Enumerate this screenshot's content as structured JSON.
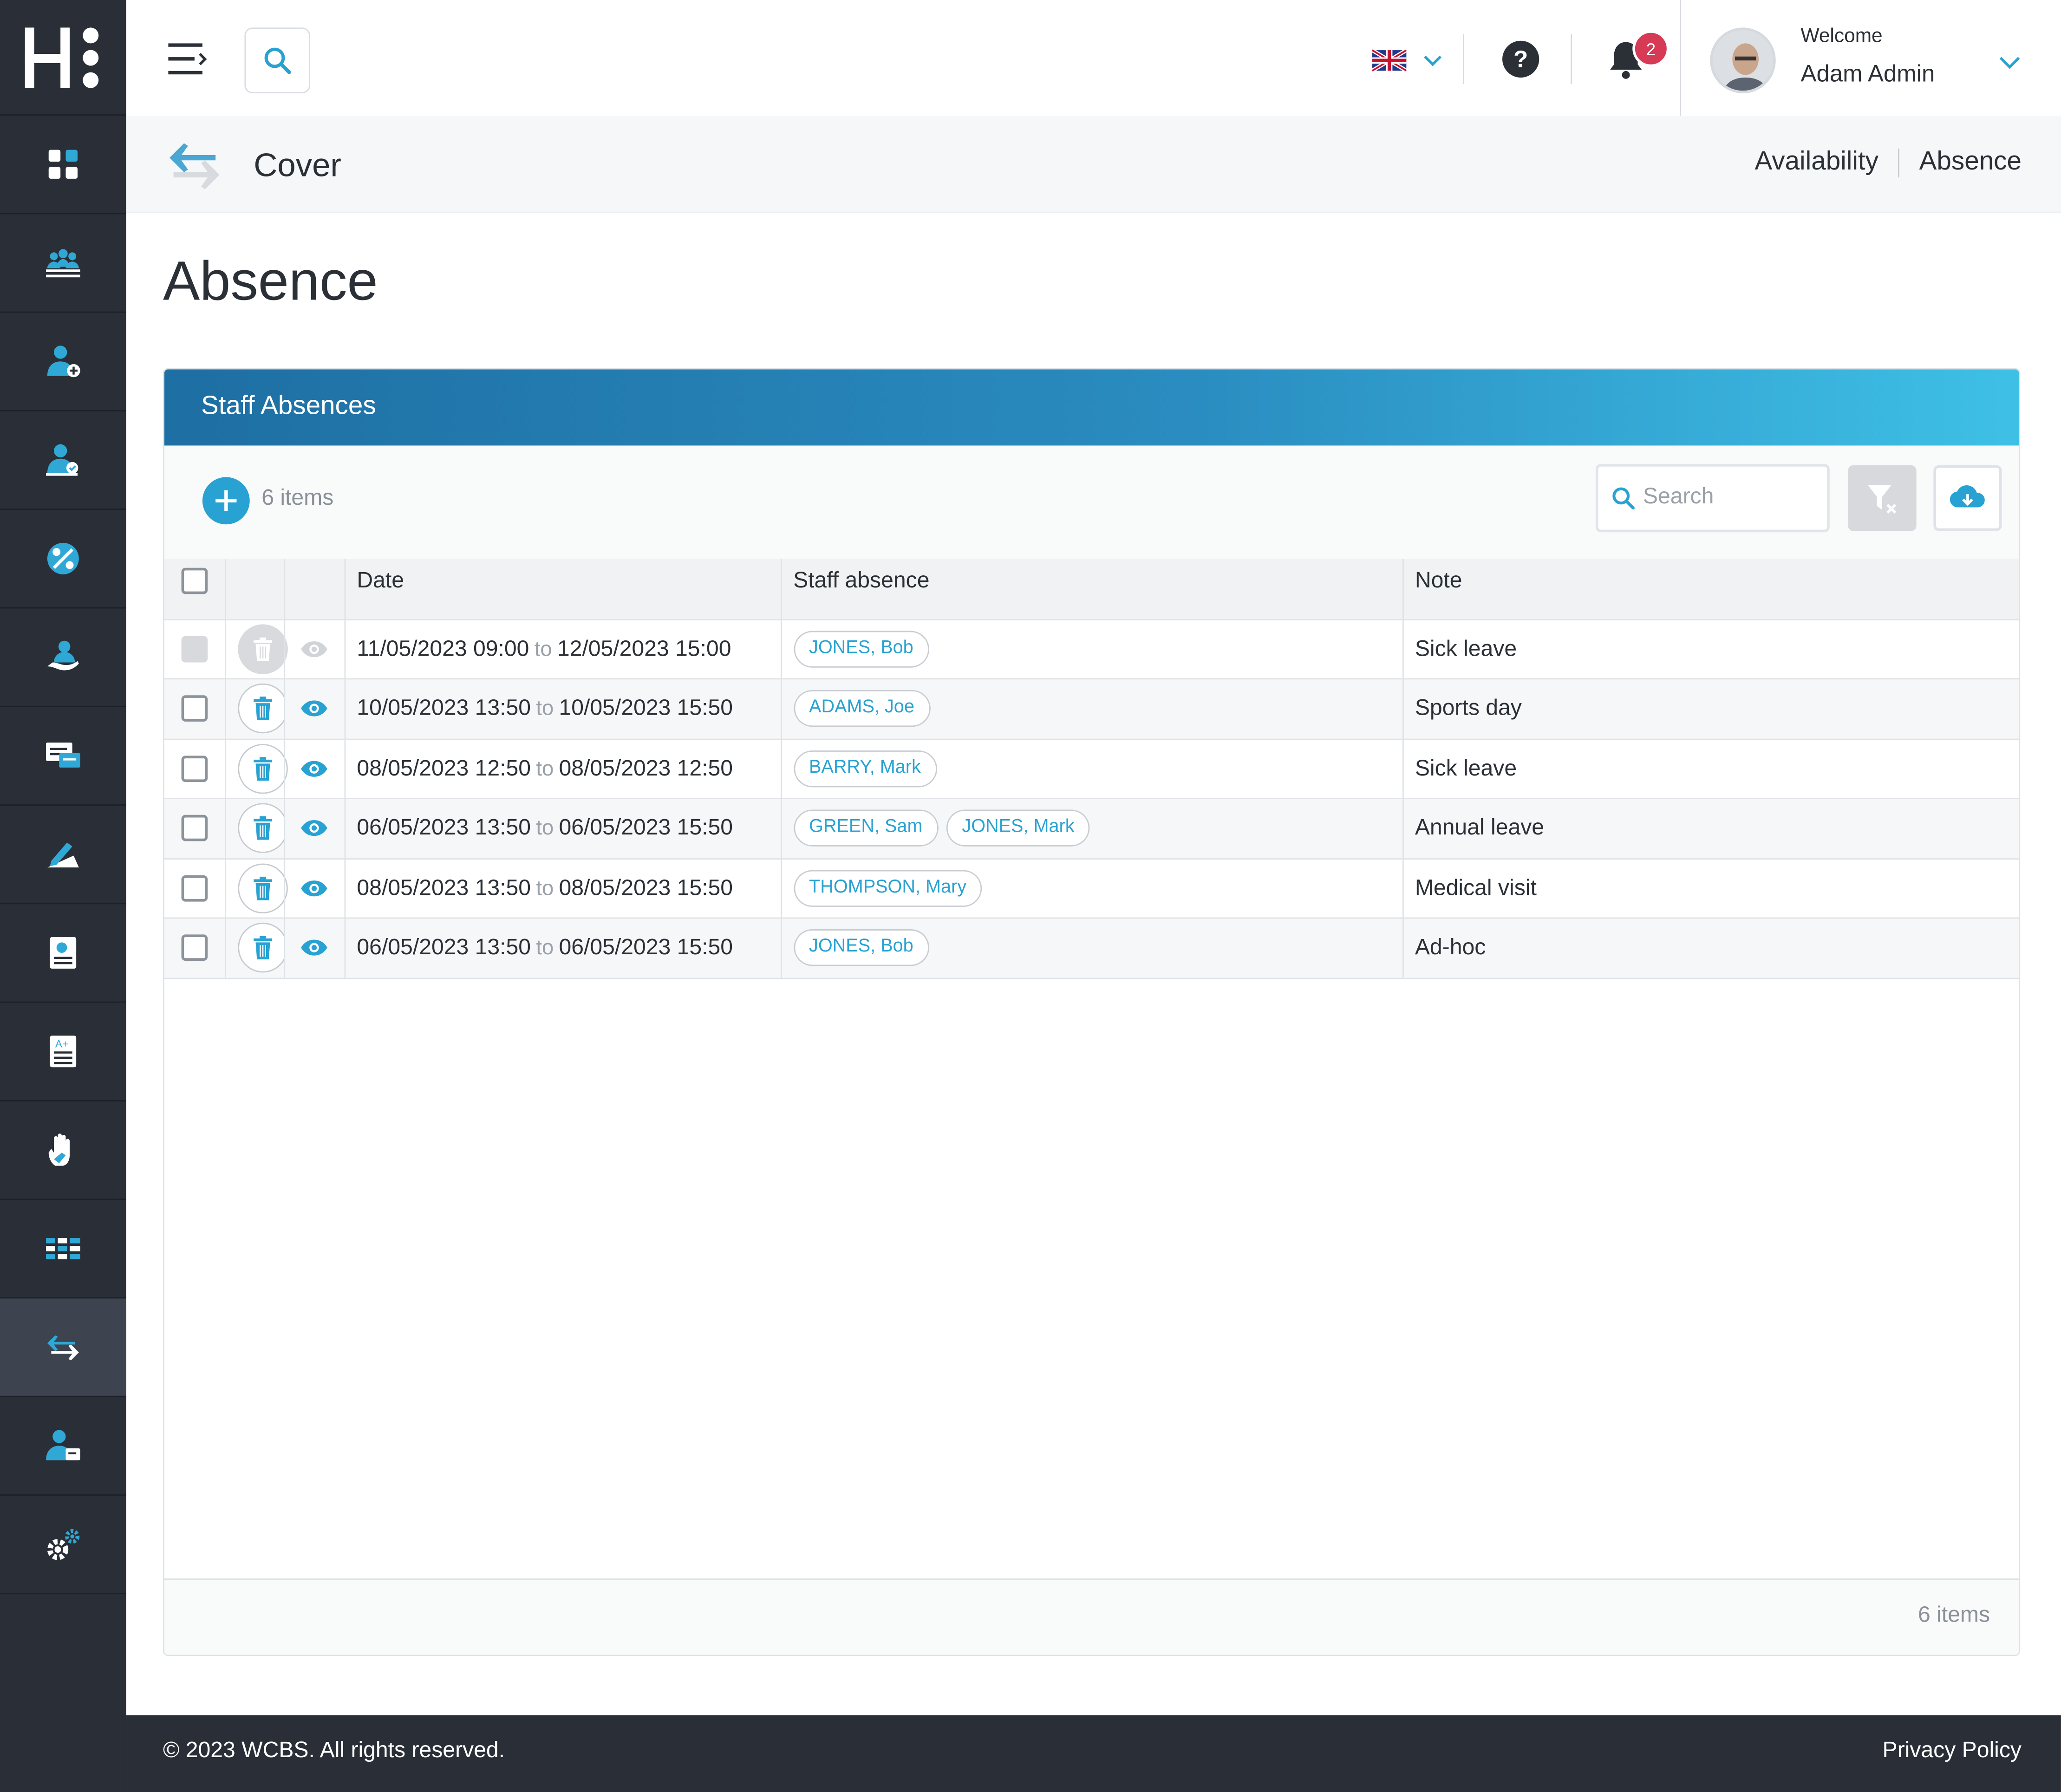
{
  "topbar": {
    "welcome": "Welcome",
    "user_name": "Adam Admin",
    "notification_count": "2",
    "language": "English (UK flag)"
  },
  "module": {
    "title": "Cover",
    "links": [
      "Availability",
      "Absence"
    ]
  },
  "page": {
    "title": "Absence"
  },
  "panel": {
    "title": "Staff Absences",
    "items_count": "6 items",
    "search_placeholder": "Search",
    "columns": [
      "Date",
      "Staff absence",
      "Note"
    ],
    "rows": [
      {
        "from": "11/05/2023 09:00",
        "sep": "to",
        "to": "12/05/2023 15:00",
        "staff": [
          "JONES, Bob"
        ],
        "note": "Sick leave",
        "disabled": true
      },
      {
        "from": "10/05/2023 13:50",
        "sep": "to",
        "to": "10/05/2023 15:50",
        "staff": [
          "ADAMS, Joe"
        ],
        "note": "Sports day",
        "disabled": false
      },
      {
        "from": "08/05/2023 12:50",
        "sep": "to",
        "to": "08/05/2023 12:50",
        "staff": [
          "BARRY, Mark"
        ],
        "note": "Sick leave",
        "disabled": false
      },
      {
        "from": "06/05/2023 13:50",
        "sep": "to",
        "to": "06/05/2023 15:50",
        "staff": [
          "GREEN, Sam",
          "JONES, Mark"
        ],
        "note": "Annual leave",
        "disabled": false
      },
      {
        "from": "08/05/2023 13:50",
        "sep": "to",
        "to": "08/05/2023 15:50",
        "staff": [
          "THOMPSON, Mary"
        ],
        "note": "Medical visit",
        "disabled": false
      },
      {
        "from": "06/05/2023 13:50",
        "sep": "to",
        "to": "06/05/2023 15:50",
        "staff": [
          "JONES, Bob"
        ],
        "note": "Ad-hoc",
        "disabled": false
      }
    ]
  },
  "footer": {
    "copyright": "© 2023 WCBS. All rights reserved.",
    "privacy": "Privacy Policy"
  },
  "sidebar": {
    "items": [
      "dashboard-icon",
      "groups-icon",
      "staff-add-icon",
      "staff-check-icon",
      "percent-icon",
      "care-icon",
      "messages-icon",
      "writing-icon",
      "report-icon",
      "grades-icon",
      "hand-icon",
      "timetable-icon",
      "cover-icon",
      "staff-id-icon",
      "settings-icon"
    ],
    "active_index": 12
  },
  "colors": {
    "accent": "#27a2d2",
    "sidebar": "#2a2f37",
    "header_gradient_start": "#1e6fa3",
    "header_gradient_end": "#3ec0e6",
    "badge": "#d63a55"
  }
}
